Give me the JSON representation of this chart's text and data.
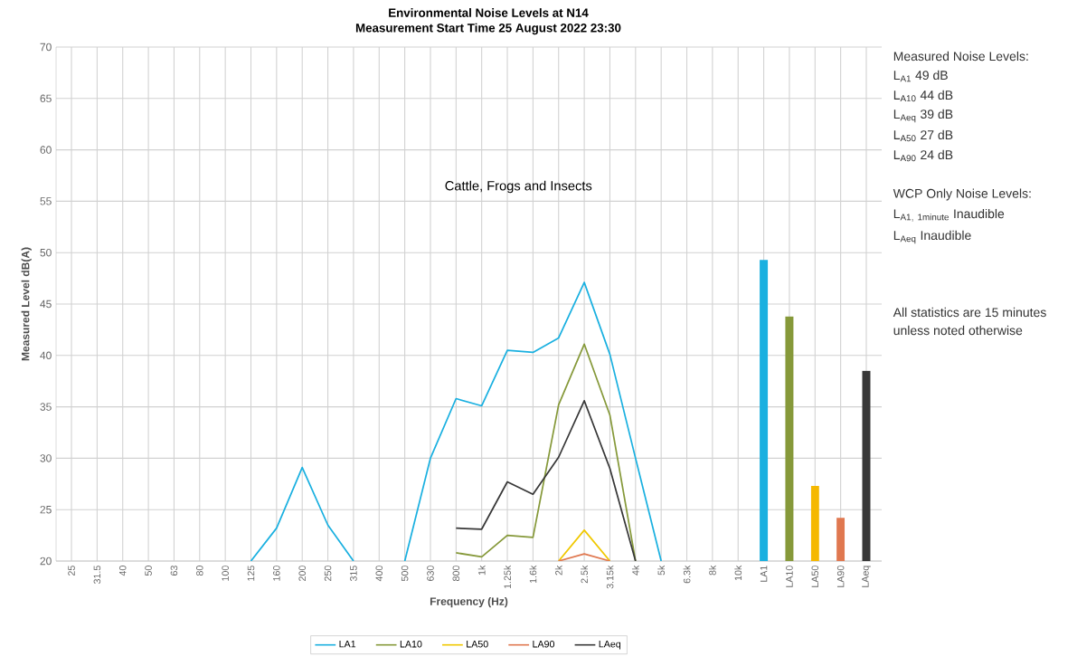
{
  "chart_data": {
    "type": "line",
    "title": "Environmental Noise Levels at N14",
    "subtitle": "Measurement Start Time 25 August 2022 23:30",
    "xlabel": "Frequency (Hz)",
    "ylabel": "Measured Level dB(A)",
    "categories": [
      "25",
      "31.5",
      "40",
      "50",
      "63",
      "80",
      "100",
      "125",
      "160",
      "200",
      "250",
      "315",
      "400",
      "500",
      "630",
      "800",
      "1k",
      "1.25k",
      "1.6k",
      "2k",
      "2.5k",
      "3.15k",
      "4k",
      "5k",
      "6.3k",
      "8k",
      "10k",
      "LA1",
      "LA10",
      "LA50",
      "LA90",
      "LAeq"
    ],
    "ylim": [
      20,
      70
    ],
    "yticks": [
      20,
      25,
      30,
      35,
      40,
      45,
      50,
      55,
      60,
      65,
      70
    ],
    "grid": true,
    "legend": "bottom",
    "marker": "none",
    "series": [
      {
        "name": "LA1",
        "color": "#1ab0e0",
        "values": [
          null,
          null,
          null,
          null,
          null,
          null,
          null,
          20,
          23.2,
          29.1,
          23.5,
          20,
          null,
          20,
          30,
          35.8,
          35.1,
          40.5,
          40.3,
          41.7,
          47.1,
          40.1,
          30,
          20,
          null,
          null,
          null,
          null,
          null,
          null,
          null,
          null
        ]
      },
      {
        "name": "LA10",
        "color": "#86993a",
        "values": [
          null,
          null,
          null,
          null,
          null,
          null,
          null,
          null,
          null,
          null,
          null,
          null,
          null,
          null,
          null,
          20.8,
          20.4,
          22.5,
          22.3,
          35.2,
          41.1,
          34.2,
          20,
          null,
          null,
          null,
          null,
          null,
          null,
          null,
          null,
          null
        ]
      },
      {
        "name": "LA50",
        "color": "#f0c800",
        "values": [
          null,
          null,
          null,
          null,
          null,
          null,
          null,
          null,
          null,
          null,
          null,
          null,
          null,
          null,
          null,
          null,
          null,
          null,
          null,
          20,
          23,
          20,
          null,
          null,
          null,
          null,
          null,
          null,
          null,
          null,
          null,
          null
        ]
      },
      {
        "name": "LA90",
        "color": "#e07850",
        "values": [
          null,
          null,
          null,
          null,
          null,
          null,
          null,
          null,
          null,
          null,
          null,
          null,
          null,
          null,
          null,
          null,
          null,
          null,
          null,
          20,
          20.7,
          20,
          null,
          null,
          null,
          null,
          null,
          null,
          null,
          null,
          null,
          null
        ]
      },
      {
        "name": "LAeq",
        "color": "#383838",
        "values": [
          null,
          null,
          null,
          null,
          null,
          null,
          null,
          null,
          null,
          null,
          null,
          null,
          null,
          null,
          null,
          23.2,
          23.1,
          27.7,
          26.5,
          30.1,
          35.6,
          29,
          20,
          null,
          null,
          null,
          null,
          null,
          null,
          null,
          null,
          null
        ]
      },
      {
        "type": "bar",
        "colors": [
          null,
          null,
          null,
          null,
          null,
          null,
          null,
          null,
          null,
          null,
          null,
          null,
          null,
          null,
          null,
          null,
          null,
          null,
          null,
          null,
          null,
          null,
          null,
          null,
          null,
          null,
          null,
          "#1ab0e0",
          "#86993a",
          "#f5b800",
          "#e07850",
          "#383838"
        ],
        "values": [
          null,
          null,
          null,
          null,
          null,
          null,
          null,
          null,
          null,
          null,
          null,
          null,
          null,
          null,
          null,
          null,
          null,
          null,
          null,
          null,
          null,
          null,
          null,
          null,
          null,
          null,
          null,
          49.3,
          43.8,
          27.3,
          24.2,
          38.5
        ]
      }
    ],
    "annotations": [
      "Cattle, Frogs and Insects",
      "Measured Noise Levels:",
      "L$_{A1}$ 49 dB",
      "L$_{A10}$ 44 dB",
      "L$_{Aeq}$ 39 dB",
      "L$_{A50}$ 27 dB",
      "L$_{A90}$ 24 dB",
      "WCP Only Noise Levels:",
      "\\mathrm{L_{A1,\\ 1minute}\\ Inaudible}",
      "L$_{Aeq}$ Inaudible",
      "All statistics are 15 minutes",
      "unless noted otherwise"
    ]
  }
}
